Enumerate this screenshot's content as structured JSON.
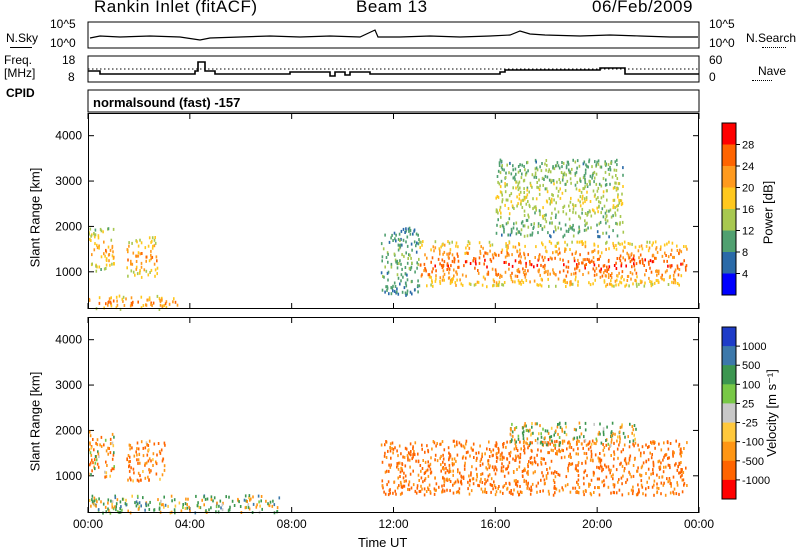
{
  "header": {
    "station": "Rankin Inlet (fitACF)",
    "beam": "Beam 13",
    "date": "06/Feb/2009"
  },
  "top_panels": {
    "nsky_label": "N.Sky",
    "nsky_ticks": [
      "10^5",
      "10^0"
    ],
    "nsearch_label": "N.Search",
    "nsearch_ticks": [
      "10^5",
      "10^0"
    ],
    "freq_label_1": "Freq.",
    "freq_label_2": "[MHz]",
    "freq_ticks": [
      "18",
      "8"
    ],
    "nave_label": "Nave",
    "nave_ticks": [
      "60",
      "0"
    ],
    "cpid_label": "CPID",
    "cpid_text": "normalsound (fast) -157"
  },
  "chart_data": [
    {
      "type": "heatmap",
      "panel": "power",
      "xlabel": "",
      "ylabel": "Slant Range [km]",
      "x_ticks": [
        "00:00",
        "04:00",
        "08:00",
        "12:00",
        "16:00",
        "20:00",
        "00:00"
      ],
      "y_ticks": [
        "1000",
        "2000",
        "3000",
        "4000"
      ],
      "xlim_hours": [
        0,
        24
      ],
      "ylim_km": [
        180,
        4500
      ],
      "colorbar": {
        "label": "Power [dB]",
        "ticks": [
          "28",
          "24",
          "20",
          "16",
          "12",
          "8",
          "4"
        ],
        "colors": [
          "#ff0000",
          "#ff6400",
          "#ff9a1e",
          "#ffc81e",
          "#a8c850",
          "#50a070",
          "#2a6aa8",
          "#0000ff"
        ]
      },
      "features": [
        {
          "time_h": [
            0.0,
            3.5
          ],
          "range_km": [
            200,
            500
          ],
          "level_db": 24
        },
        {
          "time_h": [
            0.0,
            1.0
          ],
          "range_km": [
            1000,
            2000
          ],
          "level_db": 20
        },
        {
          "time_h": [
            1.5,
            2.7
          ],
          "range_km": [
            900,
            1800
          ],
          "level_db": 22
        },
        {
          "time_h": [
            13.0,
            23.5
          ],
          "range_km": [
            700,
            1700
          ],
          "level_db": 26
        },
        {
          "time_h": [
            11.5,
            13.0
          ],
          "range_km": [
            500,
            2000
          ],
          "level_db": 10
        },
        {
          "time_h": [
            16.0,
            21.0
          ],
          "range_km": [
            1800,
            3500
          ],
          "level_db": 14
        }
      ]
    },
    {
      "type": "heatmap",
      "panel": "velocity",
      "xlabel": "Time UT",
      "ylabel": "Slant Range [km]",
      "x_ticks": [
        "00:00",
        "04:00",
        "08:00",
        "12:00",
        "16:00",
        "20:00",
        "00:00"
      ],
      "y_ticks": [
        "1000",
        "2000",
        "3000",
        "4000"
      ],
      "xlim_hours": [
        0,
        24
      ],
      "ylim_km": [
        180,
        4500
      ],
      "colorbar": {
        "label": "Velocity [m s⁻¹]",
        "ticks": [
          "1000",
          "500",
          "100",
          "25",
          "-25",
          "-100",
          "-500",
          "-1000"
        ],
        "colors": [
          "#1e3cc8",
          "#3c78aa",
          "#3c9650",
          "#78c846",
          "#c8c8c8",
          "#ffc83c",
          "#ff9614",
          "#ff6400",
          "#ff0000"
        ]
      },
      "features": [
        {
          "time_h": [
            0.0,
            7.5
          ],
          "range_km": [
            200,
            600
          ],
          "velocity_ms": 50
        },
        {
          "time_h": [
            0.0,
            1.0
          ],
          "range_km": [
            1000,
            2000
          ],
          "velocity_ms": -200
        },
        {
          "time_h": [
            1.5,
            3.0
          ],
          "range_km": [
            900,
            1800
          ],
          "velocity_ms": -300
        },
        {
          "time_h": [
            11.5,
            23.5
          ],
          "range_km": [
            600,
            1800
          ],
          "velocity_ms": -400
        },
        {
          "time_h": [
            16.5,
            21.5
          ],
          "range_km": [
            1700,
            2200
          ],
          "velocity_ms": 0
        }
      ]
    }
  ],
  "colors": {
    "background": "#ffffff",
    "axis": "#000000"
  }
}
